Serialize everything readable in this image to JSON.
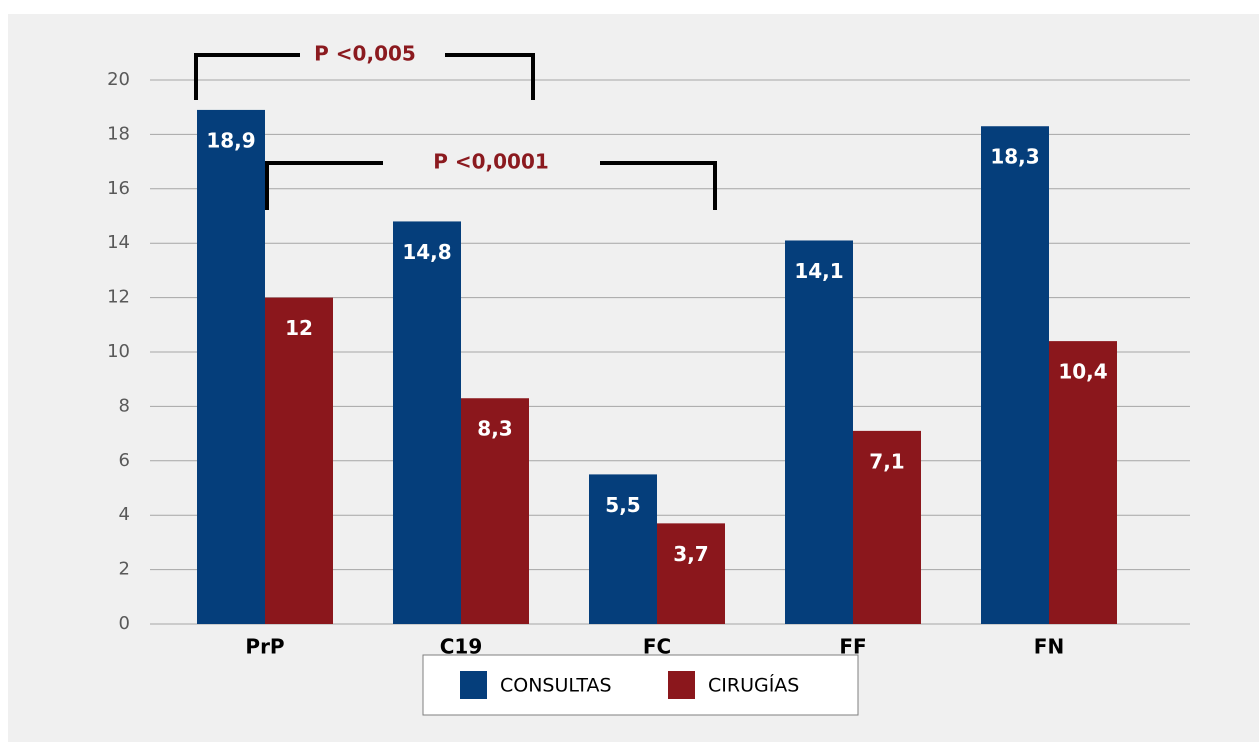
{
  "chart_data": {
    "type": "bar",
    "categories": [
      "PrP",
      "C19",
      "FC",
      "FF",
      "FN"
    ],
    "series": [
      {
        "name": "CONSULTAS",
        "color": "#053e7b",
        "values": [
          18.9,
          14.8,
          5.5,
          14.1,
          18.3
        ],
        "value_labels": [
          "18,9",
          "14,8",
          "5,5",
          "14,1",
          "18,3"
        ]
      },
      {
        "name": "CIRUGÍAS",
        "color": "#8b171c",
        "values": [
          12,
          8.3,
          3.7,
          7.1,
          10.4
        ],
        "value_labels": [
          "12",
          "8,3",
          "3,7",
          "7,1",
          "10,4"
        ]
      }
    ],
    "ylim": [
      0,
      20
    ],
    "yticks": [
      0,
      2,
      4,
      6,
      8,
      10,
      12,
      14,
      16,
      18,
      20
    ],
    "grid": true,
    "annotations": [
      "P <0,005",
      "P <0,0001"
    ]
  }
}
